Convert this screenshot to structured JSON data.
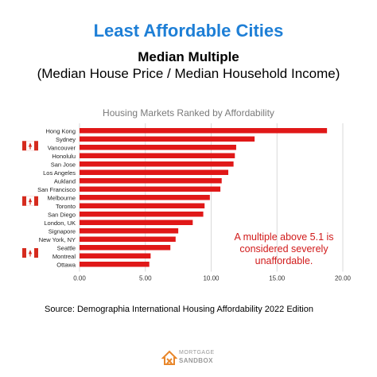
{
  "title": "Least Affordable Cities",
  "subtitle_line1": "Median Multiple",
  "subtitle_line2": "(Median House Price / Median Household Income)",
  "source": "Source: Demographia International Housing Affordability 2022 Edition",
  "logo": {
    "line1": "MORTGAGE",
    "line2": "SANDBOX",
    "icon": "house-logo-icon",
    "accent": "#e8872b"
  },
  "colors": {
    "bar": "#e01818",
    "title": "#1e7fd6",
    "annotation": "#d11a1a",
    "grid": "#d9d9d9"
  },
  "chart_data": {
    "type": "bar",
    "orientation": "horizontal",
    "title": "Housing Markets Ranked by Affordability",
    "categories": [
      "Hong Kong",
      "Sydney",
      "Vancouver",
      "Honolulu",
      "San Jose",
      "Los Angeles",
      "Aukland",
      "San Francisco",
      "Melbourne",
      "Toronto",
      "San Diego",
      "London, UK",
      "Signapore",
      "New York, NY",
      "Seattle",
      "Montreal",
      "Ottawa"
    ],
    "values": [
      18.8,
      13.3,
      11.9,
      11.8,
      11.7,
      11.3,
      10.8,
      10.7,
      9.9,
      9.5,
      9.4,
      8.6,
      7.5,
      7.3,
      6.9,
      5.4,
      5.3
    ],
    "flagged": [
      "Vancouver",
      "Toronto",
      "Montreal",
      "Ottawa"
    ],
    "flag_icon": "canadian-flag-icon",
    "xlim": [
      0,
      20
    ],
    "xticks": [
      "0.00",
      "5.00",
      "10.00",
      "15.00",
      "20.00"
    ],
    "grid": true,
    "annotation": "A multiple above 5.1 is considered severely unaffordable."
  }
}
